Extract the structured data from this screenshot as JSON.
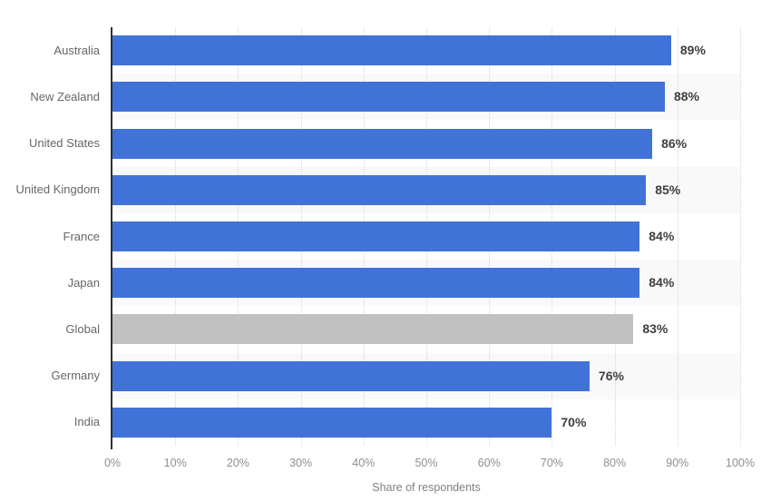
{
  "chart_data": {
    "type": "bar",
    "orientation": "horizontal",
    "title": "",
    "xlabel": "Share of respondents",
    "ylabel": "",
    "xlim": [
      0,
      100
    ],
    "x_ticks": [
      "0%",
      "10%",
      "20%",
      "30%",
      "40%",
      "50%",
      "60%",
      "70%",
      "80%",
      "90%",
      "100%"
    ],
    "grid": "vertical-dotted",
    "legend": "none",
    "row_stripes": "alternating white / light gray starting white",
    "categories": [
      "Australia",
      "New Zealand",
      "United States",
      "United Kingdom",
      "France",
      "Japan",
      "Global",
      "Germany",
      "India"
    ],
    "values": [
      89,
      88,
      86,
      85,
      84,
      84,
      83,
      76,
      70
    ],
    "value_labels": [
      "89%",
      "88%",
      "86%",
      "85%",
      "84%",
      "84%",
      "83%",
      "76%",
      "70%"
    ],
    "highlighted_category": "Global",
    "bar_colors": [
      "#4172d8",
      "#4172d8",
      "#4172d8",
      "#4172d8",
      "#4172d8",
      "#4172d8",
      "#c1c1c1",
      "#4172d8",
      "#4172d8"
    ]
  },
  "colors": {
    "bar_blue": "#4172d8",
    "bar_gray": "#c1c1c1",
    "row_stripe": "#f9f9f9",
    "row_plain": "#ffffff",
    "axis_line": "#2f2f2f",
    "gridline": "#d6d6d6",
    "category_label": "#666666",
    "value_label": "#3f3f3f",
    "tick_label": "#8f8f8f",
    "axis_title": "#808080",
    "background": "#ffffff"
  }
}
